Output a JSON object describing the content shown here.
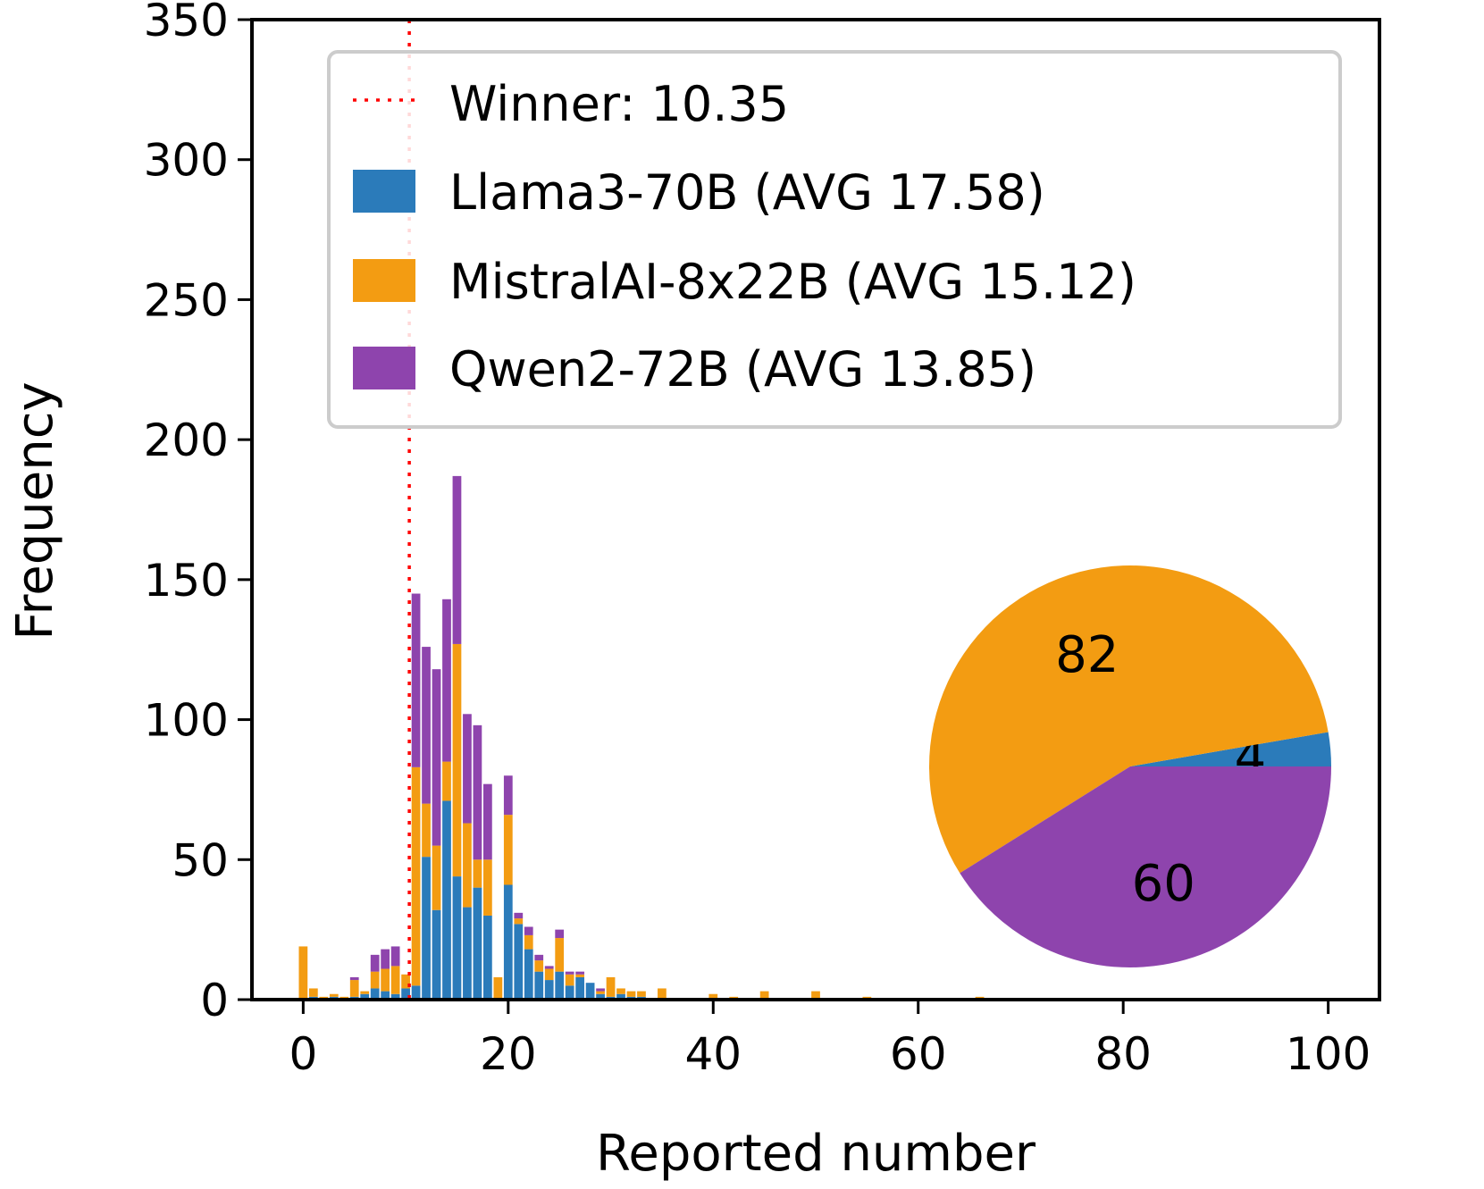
{
  "chart_data": {
    "type": "stacked histogram with inset pie",
    "xlabel": "Reported number",
    "ylabel": "Frequency",
    "xlim": [
      -5,
      105
    ],
    "ylim": [
      0,
      350
    ],
    "x_ticks": [
      0,
      20,
      40,
      60,
      80,
      100
    ],
    "y_ticks": [
      0,
      50,
      100,
      150,
      200,
      250,
      300,
      350
    ],
    "winner": {
      "label": "Winner: 10.35",
      "value": 10.35,
      "color": "#ff0000"
    },
    "series": [
      {
        "name": "Llama3-70B (AVG 17.58)",
        "color": "#2b7bba",
        "values": [
          [
            1,
            1
          ],
          [
            3,
            1
          ],
          [
            5,
            1
          ],
          [
            6,
            2
          ],
          [
            7,
            4
          ],
          [
            8,
            3
          ],
          [
            9,
            2
          ],
          [
            10,
            4
          ],
          [
            11,
            5
          ],
          [
            12,
            51
          ],
          [
            13,
            32
          ],
          [
            14,
            71
          ],
          [
            15,
            44
          ],
          [
            16,
            33
          ],
          [
            17,
            40
          ],
          [
            18,
            30
          ],
          [
            20,
            41
          ],
          [
            21,
            27
          ],
          [
            22,
            18
          ],
          [
            23,
            10
          ],
          [
            24,
            7
          ],
          [
            25,
            10
          ],
          [
            26,
            5
          ],
          [
            27,
            8
          ],
          [
            28,
            6
          ],
          [
            29,
            2
          ],
          [
            30,
            1
          ],
          [
            31,
            2
          ],
          [
            32,
            1
          ],
          [
            33,
            1
          ]
        ]
      },
      {
        "name": "MistralAI-8x22B (AVG 15.12)",
        "color": "#f39c12",
        "values": [
          [
            0,
            19
          ],
          [
            1,
            3
          ],
          [
            2,
            1
          ],
          [
            3,
            1
          ],
          [
            4,
            1
          ],
          [
            5,
            6
          ],
          [
            6,
            1
          ],
          [
            7,
            6
          ],
          [
            8,
            8
          ],
          [
            9,
            10
          ],
          [
            10,
            5
          ],
          [
            11,
            78
          ],
          [
            12,
            19
          ],
          [
            13,
            23
          ],
          [
            14,
            14
          ],
          [
            15,
            83
          ],
          [
            16,
            30
          ],
          [
            17,
            10
          ],
          [
            18,
            20
          ],
          [
            19,
            8
          ],
          [
            20,
            25
          ],
          [
            21,
            2
          ],
          [
            22,
            5
          ],
          [
            23,
            4
          ],
          [
            24,
            4
          ],
          [
            25,
            12
          ],
          [
            26,
            4
          ],
          [
            27,
            1
          ],
          [
            29,
            1
          ],
          [
            30,
            7
          ],
          [
            31,
            2
          ],
          [
            32,
            2
          ],
          [
            33,
            2
          ],
          [
            35,
            4
          ],
          [
            40,
            2
          ],
          [
            42,
            1
          ],
          [
            45,
            3
          ],
          [
            50,
            3
          ],
          [
            55,
            1
          ],
          [
            66,
            1
          ]
        ]
      },
      {
        "name": "Qwen2-72B (AVG 13.85)",
        "color": "#8e44ad",
        "values": [
          [
            5,
            1
          ],
          [
            7,
            6
          ],
          [
            8,
            7
          ],
          [
            9,
            7
          ],
          [
            11,
            62
          ],
          [
            12,
            56
          ],
          [
            13,
            63
          ],
          [
            14,
            58
          ],
          [
            15,
            60
          ],
          [
            16,
            39
          ],
          [
            17,
            48
          ],
          [
            18,
            27
          ],
          [
            20,
            14
          ],
          [
            21,
            2
          ],
          [
            22,
            3
          ],
          [
            23,
            2
          ],
          [
            24,
            1
          ],
          [
            25,
            3
          ],
          [
            26,
            1
          ],
          [
            27,
            1
          ],
          [
            29,
            1
          ]
        ]
      }
    ],
    "pie": {
      "slices": [
        {
          "label": "4",
          "value": 4,
          "color": "#2b7bba"
        },
        {
          "label": "82",
          "value": 82,
          "color": "#f39c12"
        },
        {
          "label": "60",
          "value": 60,
          "color": "#8e44ad"
        }
      ]
    }
  }
}
